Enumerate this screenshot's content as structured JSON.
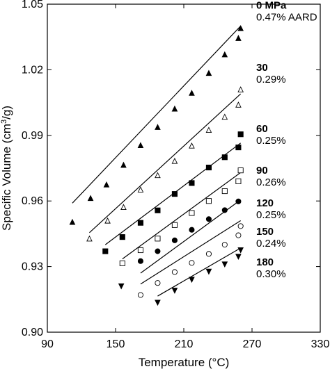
{
  "chart_data": {
    "type": "scatter",
    "xlabel": "Temperature (°C)",
    "ylabel_main": "Specific Volume (cm",
    "ylabel_sup": "3",
    "ylabel_tail": "/g)",
    "xlim": [
      90,
      330
    ],
    "ylim": [
      0.9,
      1.05
    ],
    "x_ticks": [
      90,
      150,
      210,
      270,
      330
    ],
    "x_tick_labels": [
      "90",
      "150",
      "210",
      "270",
      "330"
    ],
    "y_ticks": [
      0.9,
      0.93,
      0.96,
      0.99,
      1.02,
      1.05
    ],
    "y_tick_labels": [
      "0.90",
      "0.93",
      "0.96",
      "0.99",
      "1.02",
      "1.05"
    ],
    "series": [
      {
        "pressure_label": "0 MPa",
        "aard_label": "0.47% AARD",
        "marker": "triangle-filled",
        "points": [
          [
            112,
            0.9504
          ],
          [
            128,
            0.9613
          ],
          [
            142,
            0.9675
          ],
          [
            157,
            0.9765
          ],
          [
            172,
            0.9855
          ],
          [
            187,
            0.9938
          ],
          [
            202,
            1.0022
          ],
          [
            217,
            1.0094
          ],
          [
            232,
            1.0185
          ],
          [
            246,
            1.027
          ],
          [
            258,
            1.0345
          ],
          [
            260,
            1.039
          ]
        ],
        "fit": [
          [
            112,
            0.959
          ],
          [
            260,
            1.04
          ]
        ]
      },
      {
        "pressure_label": "30",
        "aard_label": "0.29%",
        "marker": "triangle-open",
        "points": [
          [
            127,
            0.9428
          ],
          [
            143,
            0.951
          ],
          [
            157,
            0.9572
          ],
          [
            172,
            0.9652
          ],
          [
            187,
            0.9718
          ],
          [
            202,
            0.9783
          ],
          [
            217,
            0.9853
          ],
          [
            232,
            0.9925
          ],
          [
            246,
            0.9985
          ],
          [
            258,
            1.004
          ],
          [
            260,
            1.011
          ]
        ],
        "fit": [
          [
            127,
            0.9455
          ],
          [
            260,
            1.009
          ]
        ]
      },
      {
        "pressure_label": "60",
        "aard_label": "0.25%",
        "marker": "square-filled",
        "points": [
          [
            141,
            0.937
          ],
          [
            156,
            0.9435
          ],
          [
            172,
            0.95
          ],
          [
            187,
            0.9557
          ],
          [
            202,
            0.9632
          ],
          [
            217,
            0.9682
          ],
          [
            232,
            0.9753
          ],
          [
            246,
            0.98
          ],
          [
            258,
            0.9845
          ],
          [
            260,
            0.9905
          ]
        ],
        "fit": [
          [
            141,
            0.94
          ],
          [
            260,
            0.9865
          ]
        ]
      },
      {
        "pressure_label": "90",
        "aard_label": "0.26%",
        "marker": "square-open",
        "points": [
          [
            156,
            0.9315
          ],
          [
            172,
            0.9375
          ],
          [
            187,
            0.9428
          ],
          [
            202,
            0.949
          ],
          [
            217,
            0.9545
          ],
          [
            232,
            0.96
          ],
          [
            246,
            0.9645
          ],
          [
            258,
            0.969
          ],
          [
            260,
            0.974
          ]
        ],
        "fit": [
          [
            156,
            0.9335
          ],
          [
            260,
            0.973
          ]
        ]
      },
      {
        "pressure_label": "120",
        "aard_label": "0.25%",
        "marker": "circle-filled",
        "points": [
          [
            172,
            0.9325
          ],
          [
            187,
            0.937
          ],
          [
            202,
            0.942
          ],
          [
            217,
            0.9468
          ],
          [
            232,
            0.9517
          ],
          [
            246,
            0.9558
          ],
          [
            258,
            0.9598
          ]
        ],
        "fit": [
          [
            172,
            0.927
          ],
          [
            260,
            0.9605
          ]
        ]
      },
      {
        "pressure_label": "150",
        "aard_label": "0.24%",
        "marker": "circle-open",
        "points": [
          [
            172,
            0.917
          ],
          [
            187,
            0.9225
          ],
          [
            202,
            0.9275
          ],
          [
            217,
            0.9317
          ],
          [
            232,
            0.9358
          ],
          [
            246,
            0.94
          ],
          [
            258,
            0.9443
          ],
          [
            260,
            0.9485
          ]
        ],
        "fit": [
          [
            172,
            0.922
          ],
          [
            260,
            0.951
          ]
        ]
      },
      {
        "pressure_label": "180",
        "aard_label": "0.30%",
        "marker": "triangle-down-filled",
        "points": [
          [
            155,
            0.921
          ],
          [
            187,
            0.9135
          ],
          [
            202,
            0.919
          ],
          [
            217,
            0.924
          ],
          [
            232,
            0.9277
          ],
          [
            246,
            0.931
          ],
          [
            258,
            0.9345
          ],
          [
            260,
            0.9375
          ]
        ],
        "fit": [
          [
            187,
            0.9165
          ],
          [
            260,
            0.9385
          ]
        ]
      }
    ]
  }
}
